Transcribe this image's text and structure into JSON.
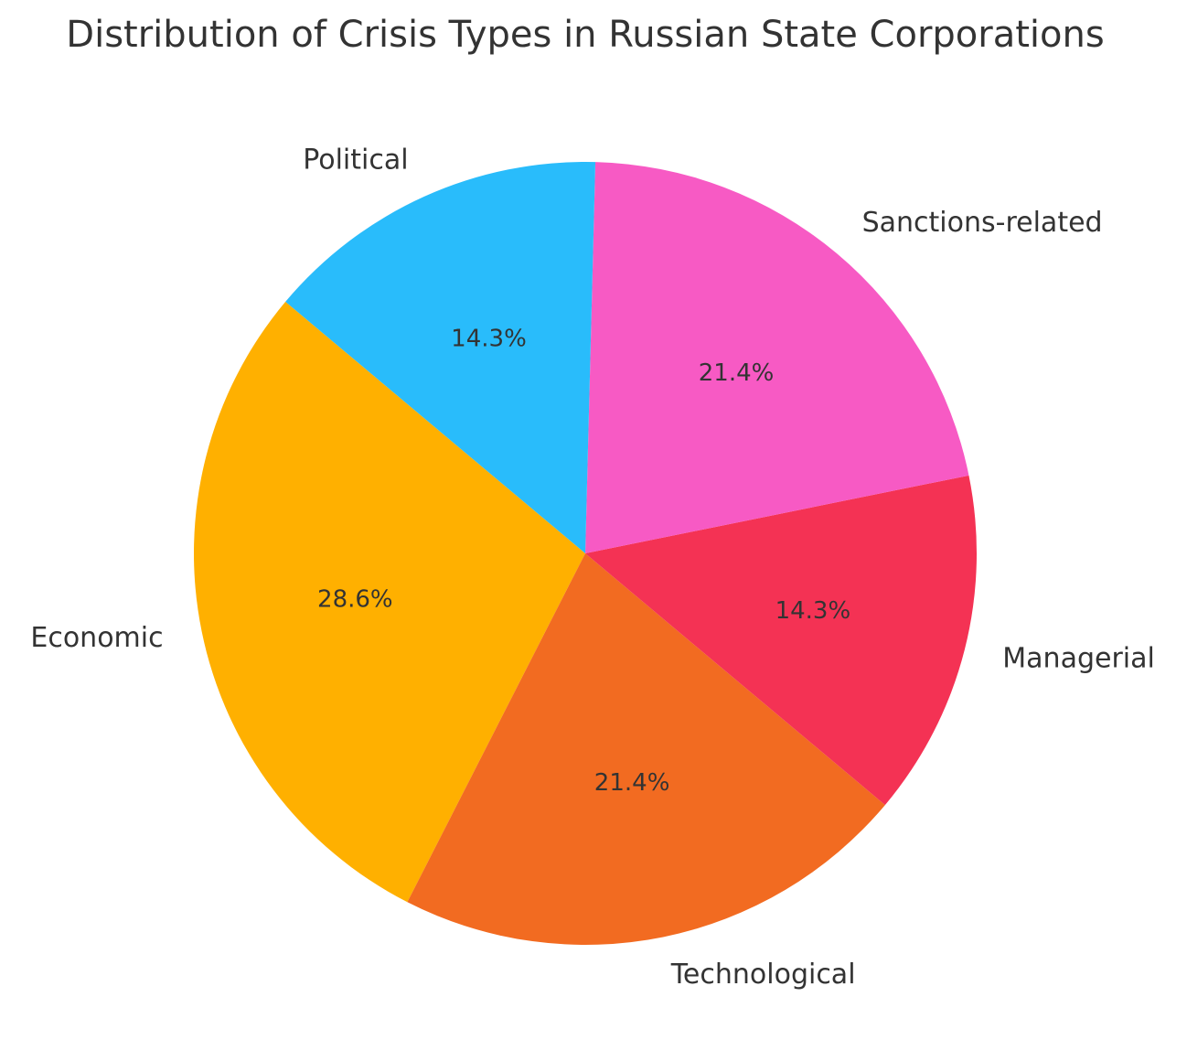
{
  "chart_data": {
    "type": "pie",
    "title": "Distribution of Crisis Types in Russian State Corporations",
    "categories": [
      "Economic",
      "Technological",
      "Managerial",
      "Sanctions-related",
      "Political"
    ],
    "values": [
      28.6,
      21.4,
      14.3,
      21.4,
      14.3
    ],
    "value_labels": [
      "28.6%",
      "21.4%",
      "14.3%",
      "21.4%",
      "14.3%"
    ],
    "colors": [
      "#ffb000",
      "#f26b21",
      "#f43254",
      "#f75ac4",
      "#29bcfb"
    ]
  }
}
